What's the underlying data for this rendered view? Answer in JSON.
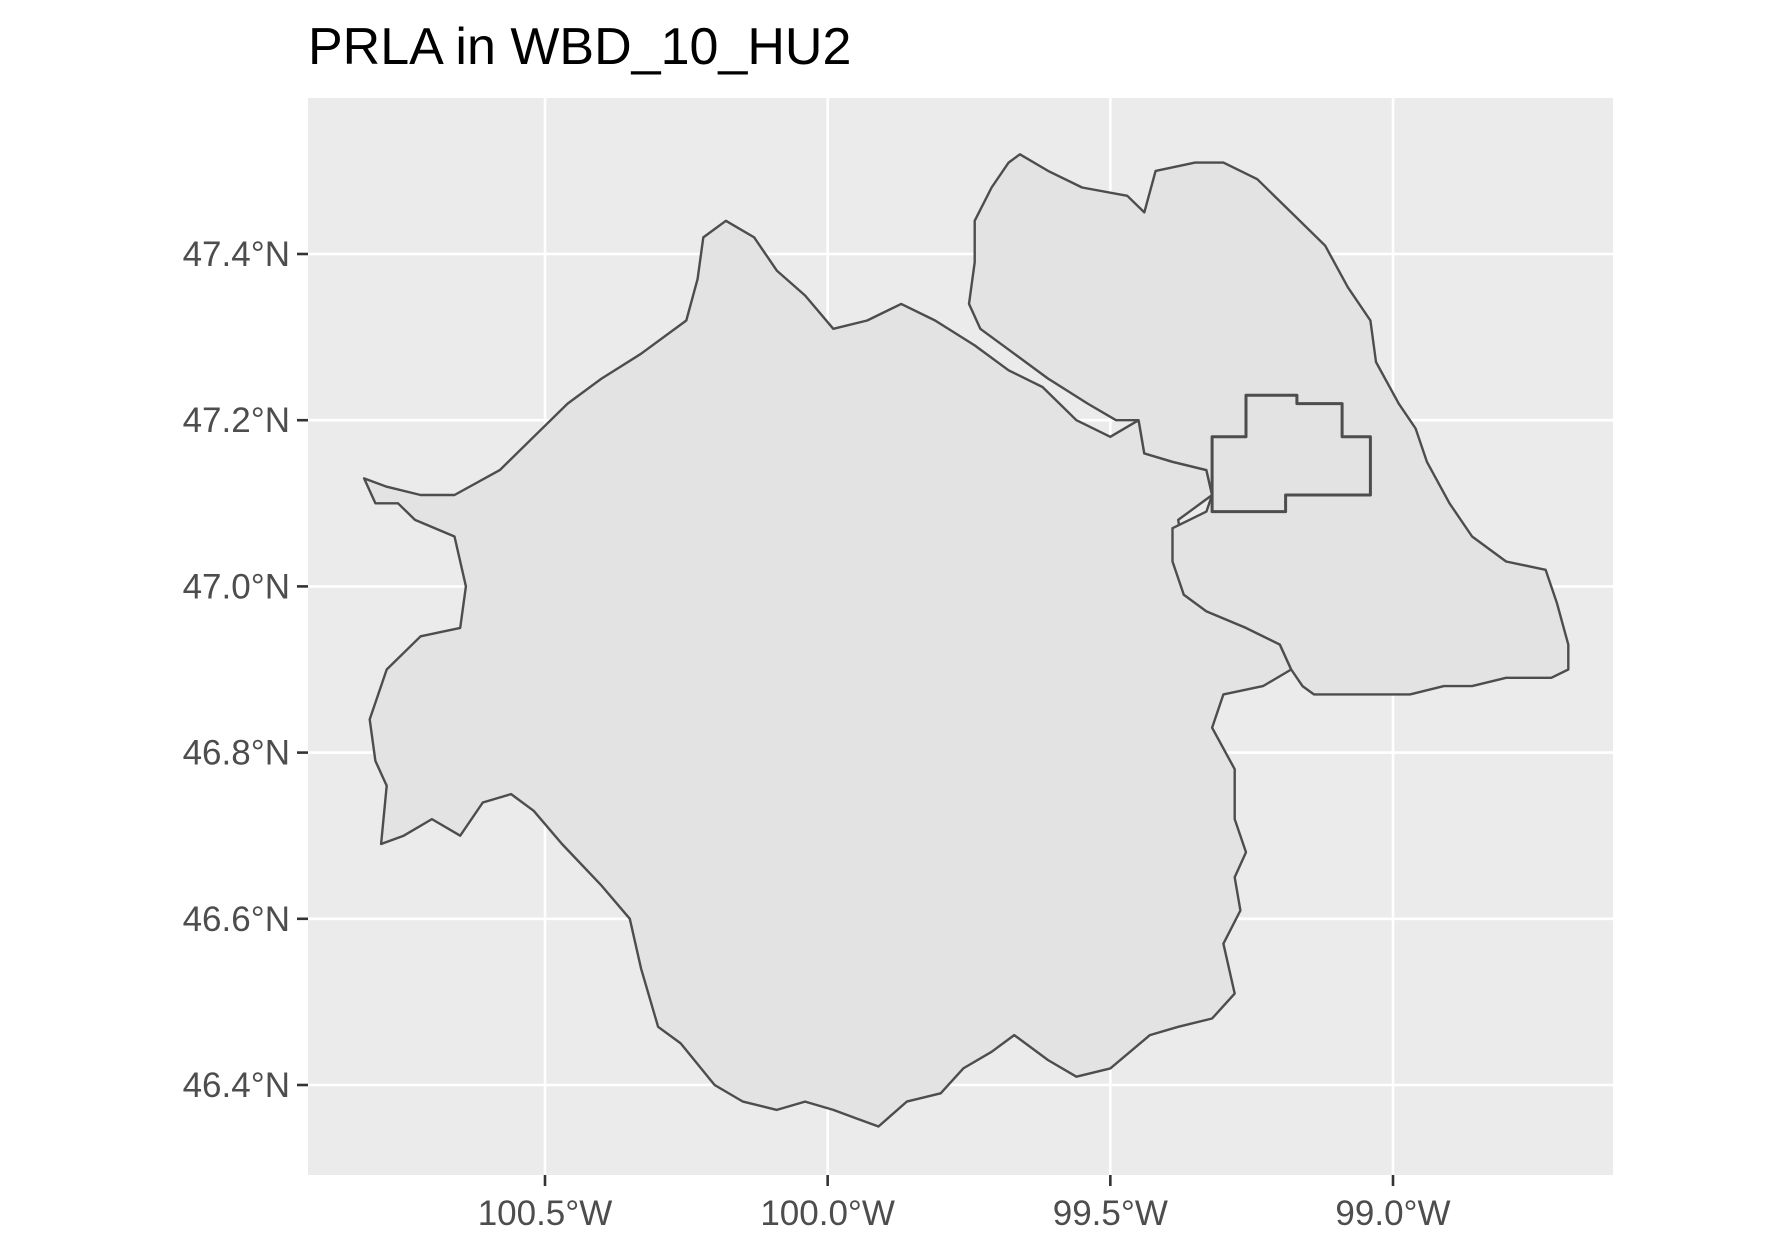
{
  "title": "PRLA in WBD_10_HU2",
  "colors": {
    "panel_background": "#ebebeb",
    "gridline": "#ffffff",
    "polygon_fill": "#e3e3e3",
    "polygon_outline": "#4d4d4d",
    "tick_label": "#4d4d4d"
  },
  "map_data": {
    "type": "map",
    "x_axis": {
      "ticks": [
        -100.5,
        -100.0,
        -99.5,
        -99.0
      ],
      "labels": [
        "100.5°W",
        "100.0°W",
        "99.5°W",
        "99.0°W"
      ],
      "range": [
        -100.93,
        -98.6
      ]
    },
    "y_axis": {
      "ticks": [
        46.4,
        46.6,
        46.8,
        47.0,
        47.2,
        47.4
      ],
      "labels": [
        "46.4°N",
        "46.6°N",
        "46.8°N",
        "47.0°N",
        "47.2°N",
        "47.4°N"
      ],
      "range": [
        46.31,
        47.58
      ]
    },
    "grid": true,
    "features": [
      {
        "name": "",
        "kind": "watershed-southwest",
        "outline": [
          [
            -100.82,
            47.13
          ],
          [
            -100.78,
            47.12
          ],
          [
            -100.72,
            47.11
          ],
          [
            -100.66,
            47.11
          ],
          [
            -100.58,
            47.14
          ],
          [
            -100.52,
            47.18
          ],
          [
            -100.46,
            47.22
          ],
          [
            -100.4,
            47.25
          ],
          [
            -100.33,
            47.28
          ],
          [
            -100.25,
            47.32
          ],
          [
            -100.23,
            47.37
          ],
          [
            -100.22,
            47.42
          ],
          [
            -100.18,
            47.44
          ],
          [
            -100.13,
            47.42
          ],
          [
            -100.09,
            47.38
          ],
          [
            -100.04,
            47.35
          ],
          [
            -99.99,
            47.31
          ],
          [
            -99.93,
            47.32
          ],
          [
            -99.87,
            47.34
          ],
          [
            -99.81,
            47.32
          ],
          [
            -99.74,
            47.29
          ],
          [
            -99.68,
            47.26
          ],
          [
            -99.62,
            47.24
          ],
          [
            -99.56,
            47.2
          ],
          [
            -99.5,
            47.18
          ],
          [
            -99.45,
            47.2
          ],
          [
            -99.44,
            47.16
          ],
          [
            -99.39,
            47.15
          ],
          [
            -99.33,
            47.14
          ],
          [
            -99.32,
            47.11
          ],
          [
            -99.38,
            47.08
          ],
          [
            -99.37,
            47.04
          ],
          [
            -99.37,
            46.99
          ],
          [
            -99.33,
            46.97
          ],
          [
            -99.26,
            46.95
          ],
          [
            -99.2,
            46.93
          ],
          [
            -99.18,
            46.9
          ],
          [
            -99.23,
            46.88
          ],
          [
            -99.3,
            46.87
          ],
          [
            -99.32,
            46.83
          ],
          [
            -99.28,
            46.78
          ],
          [
            -99.28,
            46.72
          ],
          [
            -99.26,
            46.68
          ],
          [
            -99.28,
            46.65
          ],
          [
            -99.27,
            46.61
          ],
          [
            -99.3,
            46.57
          ],
          [
            -99.28,
            46.51
          ],
          [
            -99.32,
            46.48
          ],
          [
            -99.38,
            46.47
          ],
          [
            -99.43,
            46.46
          ],
          [
            -99.5,
            46.42
          ],
          [
            -99.56,
            46.41
          ],
          [
            -99.61,
            46.43
          ],
          [
            -99.67,
            46.46
          ],
          [
            -99.71,
            46.44
          ],
          [
            -99.76,
            46.42
          ],
          [
            -99.8,
            46.39
          ],
          [
            -99.86,
            46.38
          ],
          [
            -99.91,
            46.35
          ],
          [
            -99.95,
            46.36
          ],
          [
            -99.99,
            46.37
          ],
          [
            -100.04,
            46.38
          ],
          [
            -100.09,
            46.37
          ],
          [
            -100.15,
            46.38
          ],
          [
            -100.2,
            46.4
          ],
          [
            -100.26,
            46.45
          ],
          [
            -100.3,
            46.47
          ],
          [
            -100.33,
            46.54
          ],
          [
            -100.35,
            46.6
          ],
          [
            -100.4,
            46.64
          ],
          [
            -100.47,
            46.69
          ],
          [
            -100.52,
            46.73
          ],
          [
            -100.56,
            46.75
          ],
          [
            -100.61,
            46.74
          ],
          [
            -100.65,
            46.7
          ],
          [
            -100.7,
            46.72
          ],
          [
            -100.75,
            46.7
          ],
          [
            -100.79,
            46.69
          ],
          [
            -100.78,
            46.76
          ],
          [
            -100.8,
            46.79
          ],
          [
            -100.81,
            46.84
          ],
          [
            -100.78,
            46.9
          ],
          [
            -100.72,
            46.94
          ],
          [
            -100.65,
            46.95
          ],
          [
            -100.64,
            47.0
          ],
          [
            -100.66,
            47.06
          ],
          [
            -100.73,
            47.08
          ],
          [
            -100.76,
            47.1
          ],
          [
            -100.8,
            47.1
          ],
          [
            -100.82,
            47.13
          ]
        ]
      },
      {
        "name": "",
        "kind": "watershed-northeast",
        "outline": [
          [
            -99.75,
            47.34
          ],
          [
            -99.74,
            47.39
          ],
          [
            -99.74,
            47.44
          ],
          [
            -99.71,
            47.48
          ],
          [
            -99.68,
            47.51
          ],
          [
            -99.66,
            47.52
          ],
          [
            -99.61,
            47.5
          ],
          [
            -99.55,
            47.48
          ],
          [
            -99.47,
            47.47
          ],
          [
            -99.44,
            47.45
          ],
          [
            -99.42,
            47.5
          ],
          [
            -99.35,
            47.51
          ],
          [
            -99.3,
            47.51
          ],
          [
            -99.24,
            47.49
          ],
          [
            -99.18,
            47.45
          ],
          [
            -99.12,
            47.41
          ],
          [
            -99.08,
            47.36
          ],
          [
            -99.04,
            47.32
          ],
          [
            -99.03,
            47.27
          ],
          [
            -98.99,
            47.22
          ],
          [
            -98.96,
            47.19
          ],
          [
            -98.94,
            47.15
          ],
          [
            -98.9,
            47.1
          ],
          [
            -98.86,
            47.06
          ],
          [
            -98.8,
            47.03
          ],
          [
            -98.73,
            47.02
          ],
          [
            -98.71,
            46.98
          ],
          [
            -98.69,
            46.93
          ],
          [
            -98.69,
            46.9
          ],
          [
            -98.72,
            46.89
          ],
          [
            -98.8,
            46.89
          ],
          [
            -98.86,
            46.88
          ],
          [
            -98.91,
            46.88
          ],
          [
            -98.97,
            46.87
          ],
          [
            -99.05,
            46.87
          ],
          [
            -99.1,
            46.87
          ],
          [
            -99.14,
            46.87
          ],
          [
            -99.16,
            46.88
          ],
          [
            -99.18,
            46.9
          ],
          [
            -99.2,
            46.93
          ],
          [
            -99.26,
            46.95
          ],
          [
            -99.33,
            46.97
          ],
          [
            -99.37,
            46.99
          ],
          [
            -99.39,
            47.03
          ],
          [
            -99.39,
            47.07
          ],
          [
            -99.33,
            47.09
          ],
          [
            -99.32,
            47.11
          ],
          [
            -99.33,
            47.14
          ],
          [
            -99.39,
            47.15
          ],
          [
            -99.44,
            47.16
          ],
          [
            -99.45,
            47.2
          ],
          [
            -99.49,
            47.2
          ],
          [
            -99.54,
            47.22
          ],
          [
            -99.61,
            47.25
          ],
          [
            -99.67,
            47.28
          ],
          [
            -99.73,
            47.31
          ],
          [
            -99.75,
            47.34
          ]
        ]
      },
      {
        "name": "",
        "kind": "prla-boundary",
        "outline": [
          [
            -99.26,
            47.23
          ],
          [
            -99.17,
            47.23
          ],
          [
            -99.17,
            47.22
          ],
          [
            -99.09,
            47.22
          ],
          [
            -99.09,
            47.18
          ],
          [
            -99.04,
            47.18
          ],
          [
            -99.04,
            47.11
          ],
          [
            -99.19,
            47.11
          ],
          [
            -99.19,
            47.09
          ],
          [
            -99.32,
            47.09
          ],
          [
            -99.32,
            47.18
          ],
          [
            -99.26,
            47.18
          ],
          [
            -99.26,
            47.23
          ]
        ]
      }
    ]
  }
}
